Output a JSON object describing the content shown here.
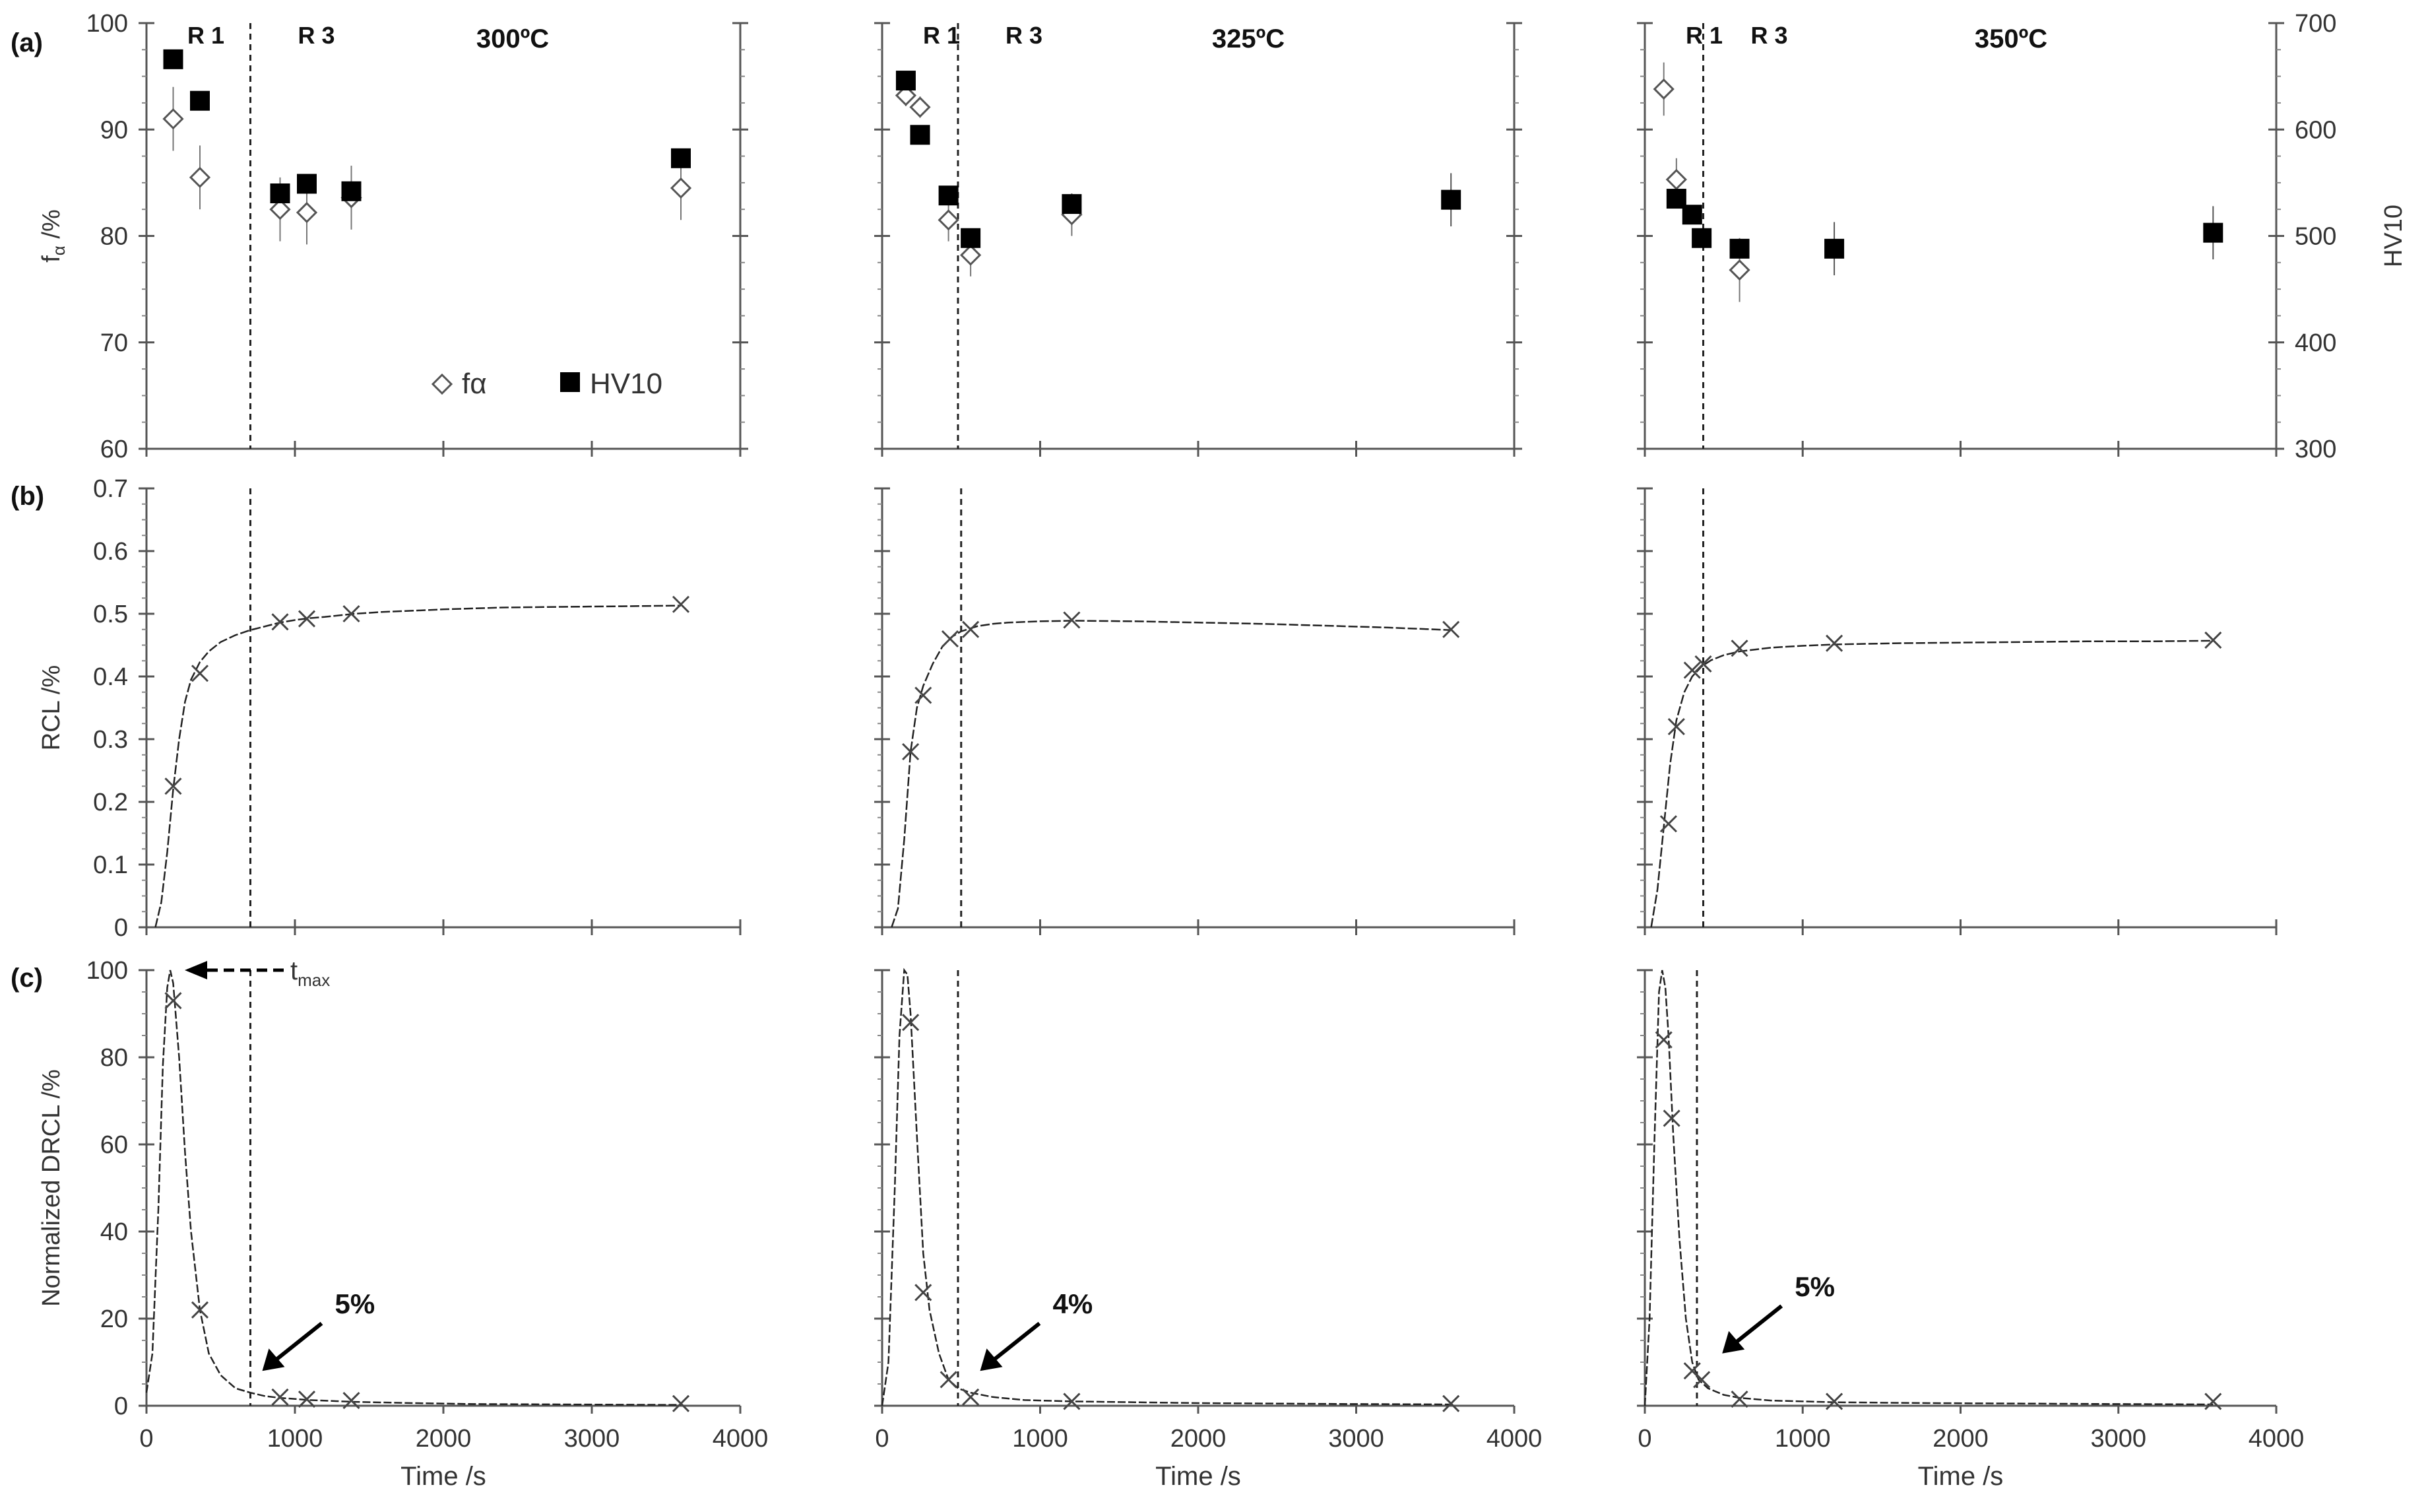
{
  "figure": {
    "panel_labels": [
      "(a)",
      "(b)",
      "(c)"
    ],
    "legend": {
      "f_alpha": "fα",
      "hv10": "HV10"
    },
    "region_labels": {
      "r1": "R 1",
      "r3": "R 3"
    }
  },
  "chart_data": [
    {
      "type": "scatter",
      "row": "a",
      "temperature_label": "300ºC",
      "ylabel_main": "f",
      "ylabel_sub": "α",
      "ylabel_suffix": " /%",
      "ylim": [
        60,
        100
      ],
      "yticks": [
        "60",
        "70",
        "80",
        "90",
        "100"
      ],
      "xlim": [
        0,
        4000
      ],
      "boundary_x": 700,
      "region_labels": [
        "R 1",
        "R 3"
      ],
      "series": [
        {
          "name": "fα",
          "marker": "diamond-open",
          "axis": "left",
          "points": [
            [
              180,
              91,
              3
            ],
            [
              360,
              85.5,
              3
            ],
            [
              900,
              82.5,
              3
            ],
            [
              1080,
              82.2,
              3
            ],
            [
              1380,
              83.6,
              3
            ],
            [
              3600,
              84.5,
              3
            ]
          ]
        },
        {
          "name": "HV10",
          "marker": "square-filled",
          "axis": "right",
          "points": [
            [
              180,
              666,
              0
            ],
            [
              360,
              627,
              0
            ],
            [
              900,
              540,
              0
            ],
            [
              1080,
              549,
              0
            ],
            [
              1380,
              542,
              0
            ],
            [
              3600,
              573,
              0
            ]
          ]
        }
      ]
    },
    {
      "type": "scatter",
      "row": "a",
      "temperature_label": "325ºC",
      "ylim": [
        60,
        100
      ],
      "xlim": [
        0,
        4000
      ],
      "boundary_x": 480,
      "region_labels": [
        "R 1",
        "R 3"
      ],
      "series": [
        {
          "name": "fα",
          "marker": "diamond-open",
          "axis": "left",
          "points": [
            [
              150,
              93.2,
              1
            ],
            [
              240,
              92.1,
              1
            ],
            [
              420,
              81.5,
              2
            ],
            [
              560,
              78.2,
              2
            ],
            [
              1200,
              82,
              2
            ]
          ]
        },
        {
          "name": "HV10",
          "marker": "square-filled",
          "axis": "right",
          "points": [
            [
              150,
              646,
              0
            ],
            [
              240,
              595,
              0
            ],
            [
              420,
              538,
              0
            ],
            [
              560,
              498,
              0
            ],
            [
              1200,
              530,
              8
            ],
            [
              3600,
              534,
              25
            ]
          ]
        }
      ]
    },
    {
      "type": "scatter",
      "row": "a",
      "temperature_label": "350ºC",
      "ylabel_right": "HV10",
      "ylim_right": [
        300,
        700
      ],
      "yticks_right": [
        "300",
        "400",
        "500",
        "600",
        "700"
      ],
      "xlim": [
        0,
        4000
      ],
      "boundary_x": 370,
      "region_labels": [
        "R 1",
        "R 3"
      ],
      "series": [
        {
          "name": "fα",
          "marker": "diamond-open",
          "axis": "left",
          "points": [
            [
              120,
              93.8,
              2.5
            ],
            [
              200,
              85.3,
              2
            ],
            [
              600,
              76.8,
              3
            ]
          ]
        },
        {
          "name": "HV10",
          "marker": "square-filled",
          "axis": "right",
          "points": [
            [
              200,
              535,
              0
            ],
            [
              300,
              520,
              0
            ],
            [
              360,
              498,
              0
            ],
            [
              600,
              488,
              0
            ],
            [
              1200,
              488,
              25
            ],
            [
              3600,
              503,
              25
            ]
          ]
        }
      ]
    },
    {
      "type": "line",
      "row": "b",
      "ylabel": "RCL /%",
      "ylim": [
        0,
        0.7
      ],
      "yticks": [
        "0",
        "0.1",
        "0.2",
        "0.3",
        "0.4",
        "0.5",
        "0.6",
        "0.7"
      ],
      "xlim": [
        0,
        4000
      ],
      "boundary_x": 700,
      "x": [
        60,
        100,
        140,
        180,
        220,
        260,
        300,
        360,
        420,
        500,
        600,
        700,
        800,
        900,
        1000,
        1100,
        1200,
        1400,
        1600,
        1800,
        2000,
        2400,
        2800,
        3200,
        3600
      ],
      "y": [
        0.0,
        0.04,
        0.12,
        0.22,
        0.3,
        0.36,
        0.395,
        0.423,
        0.44,
        0.455,
        0.466,
        0.474,
        0.48,
        0.486,
        0.49,
        0.493,
        0.495,
        0.5,
        0.503,
        0.505,
        0.507,
        0.51,
        0.511,
        0.512,
        0.513
      ],
      "markers": [
        [
          180,
          0.225
        ],
        [
          360,
          0.405
        ],
        [
          900,
          0.487
        ],
        [
          1080,
          0.492
        ],
        [
          1380,
          0.5
        ],
        [
          3600,
          0.515
        ]
      ]
    },
    {
      "type": "line",
      "row": "b",
      "ylim": [
        0,
        0.7
      ],
      "xlim": [
        0,
        4000
      ],
      "boundary_x": 500,
      "x": [
        60,
        100,
        140,
        180,
        220,
        260,
        320,
        380,
        440,
        500,
        600,
        700,
        800,
        1000,
        1200,
        1600,
        2000,
        2400,
        2800,
        3200,
        3600
      ],
      "y": [
        0.0,
        0.03,
        0.14,
        0.28,
        0.35,
        0.385,
        0.42,
        0.447,
        0.463,
        0.472,
        0.48,
        0.484,
        0.486,
        0.488,
        0.489,
        0.488,
        0.486,
        0.484,
        0.481,
        0.478,
        0.474
      ],
      "markers": [
        [
          180,
          0.28
        ],
        [
          260,
          0.37
        ],
        [
          430,
          0.46
        ],
        [
          560,
          0.475
        ],
        [
          1200,
          0.49
        ],
        [
          3600,
          0.475
        ]
      ]
    },
    {
      "type": "line",
      "row": "b",
      "ylim": [
        0,
        0.7
      ],
      "xlim": [
        0,
        4000
      ],
      "boundary_x": 370,
      "x": [
        40,
        80,
        120,
        160,
        200,
        250,
        300,
        360,
        420,
        500,
        600,
        800,
        1000,
        1200,
        1600,
        2000,
        2400,
        2800,
        3200,
        3600
      ],
      "y": [
        0.0,
        0.06,
        0.16,
        0.26,
        0.33,
        0.375,
        0.4,
        0.416,
        0.426,
        0.434,
        0.44,
        0.446,
        0.449,
        0.451,
        0.453,
        0.454,
        0.455,
        0.456,
        0.456,
        0.457
      ],
      "markers": [
        [
          150,
          0.165
        ],
        [
          200,
          0.32
        ],
        [
          300,
          0.41
        ],
        [
          370,
          0.42
        ],
        [
          600,
          0.445
        ],
        [
          1200,
          0.453
        ],
        [
          3600,
          0.458
        ]
      ]
    },
    {
      "type": "line",
      "row": "c",
      "ylabel": "Normalized DRCL /%",
      "ylim": [
        0,
        100
      ],
      "yticks": [
        "0",
        "20",
        "40",
        "60",
        "80",
        "100"
      ],
      "xlim": [
        0,
        4000
      ],
      "xticks": [
        "0",
        "1000",
        "2000",
        "3000",
        "4000"
      ],
      "xlabel": "Time /s",
      "boundary_x": 700,
      "peak_annotation": {
        "label": "t",
        "subscript": "max",
        "x": 160,
        "y": 100
      },
      "arrow_annotation": {
        "label": "5%",
        "x": 780,
        "y": 8
      },
      "x": [
        0,
        40,
        80,
        110,
        140,
        160,
        180,
        220,
        260,
        300,
        360,
        420,
        500,
        600,
        700,
        800,
        900,
        1100,
        1400,
        1800,
        2200,
        2800,
        3600
      ],
      "y": [
        3,
        12,
        45,
        78,
        96,
        100,
        97,
        80,
        58,
        40,
        22,
        12,
        7,
        4,
        3,
        2.2,
        1.8,
        1.3,
        0.9,
        0.6,
        0.4,
        0.3,
        0.2
      ],
      "markers": [
        [
          180,
          93
        ],
        [
          360,
          22
        ],
        [
          900,
          2
        ],
        [
          1080,
          1.5
        ],
        [
          1380,
          1.2
        ],
        [
          3600,
          0.5
        ]
      ]
    },
    {
      "type": "line",
      "row": "c",
      "ylim": [
        0,
        100
      ],
      "xlim": [
        0,
        4000
      ],
      "xticks": [
        "0",
        "1000",
        "2000",
        "3000",
        "4000"
      ],
      "xlabel": "Time /s",
      "boundary_x": 480,
      "arrow_annotation": {
        "label": "4%",
        "x": 620,
        "y": 8
      },
      "x": [
        0,
        40,
        80,
        110,
        140,
        160,
        180,
        220,
        260,
        300,
        360,
        420,
        480,
        560,
        700,
        900,
        1200,
        1600,
        2000,
        2500,
        3000,
        3600
      ],
      "y": [
        0,
        10,
        50,
        85,
        100,
        99,
        90,
        62,
        35,
        22,
        12,
        6,
        4,
        3,
        2,
        1.3,
        1,
        0.8,
        0.6,
        0.5,
        0.4,
        0.3
      ],
      "markers": [
        [
          180,
          88
        ],
        [
          260,
          26
        ],
        [
          420,
          6
        ],
        [
          560,
          2
        ],
        [
          1200,
          1
        ],
        [
          3600,
          0.5
        ]
      ]
    },
    {
      "type": "line",
      "row": "c",
      "ylim": [
        0,
        100
      ],
      "xlim": [
        0,
        4000
      ],
      "xticks": [
        "0",
        "1000",
        "2000",
        "3000",
        "4000"
      ],
      "xlabel": "Time /s",
      "boundary_x": 330,
      "arrow_annotation": {
        "label": "5%",
        "x": 490,
        "y": 12
      },
      "x": [
        0,
        30,
        60,
        90,
        110,
        130,
        150,
        180,
        220,
        260,
        300,
        340,
        400,
        500,
        600,
        800,
        1200,
        1800,
        2400,
        3000,
        3600
      ],
      "y": [
        0,
        20,
        60,
        95,
        100,
        96,
        85,
        62,
        38,
        20,
        10,
        6,
        4,
        2.5,
        1.8,
        1.2,
        0.8,
        0.6,
        0.5,
        0.4,
        0.3
      ],
      "markers": [
        [
          120,
          84
        ],
        [
          170,
          66
        ],
        [
          300,
          8
        ],
        [
          360,
          6
        ],
        [
          600,
          1.5
        ],
        [
          1200,
          1
        ],
        [
          3600,
          1
        ]
      ]
    }
  ]
}
